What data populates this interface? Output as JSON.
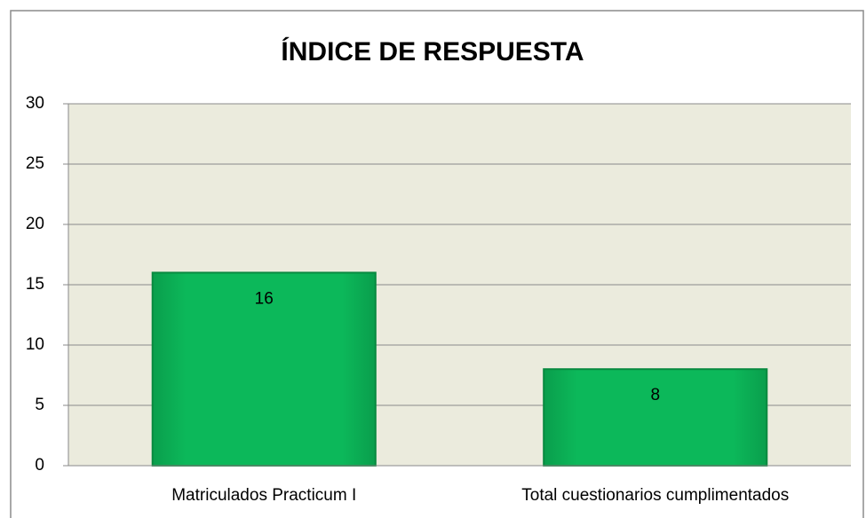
{
  "chart_data": {
    "type": "bar",
    "title": "ÍNDICE DE RESPUESTA",
    "categories": [
      "Matriculados Practicum I",
      "Total cuestionarios cumplimentados"
    ],
    "values": [
      16,
      8
    ],
    "color": "#0cb85a",
    "ylim": [
      0,
      30
    ],
    "yticks": [
      0,
      5,
      10,
      15,
      20,
      25,
      30
    ],
    "grid": true
  }
}
